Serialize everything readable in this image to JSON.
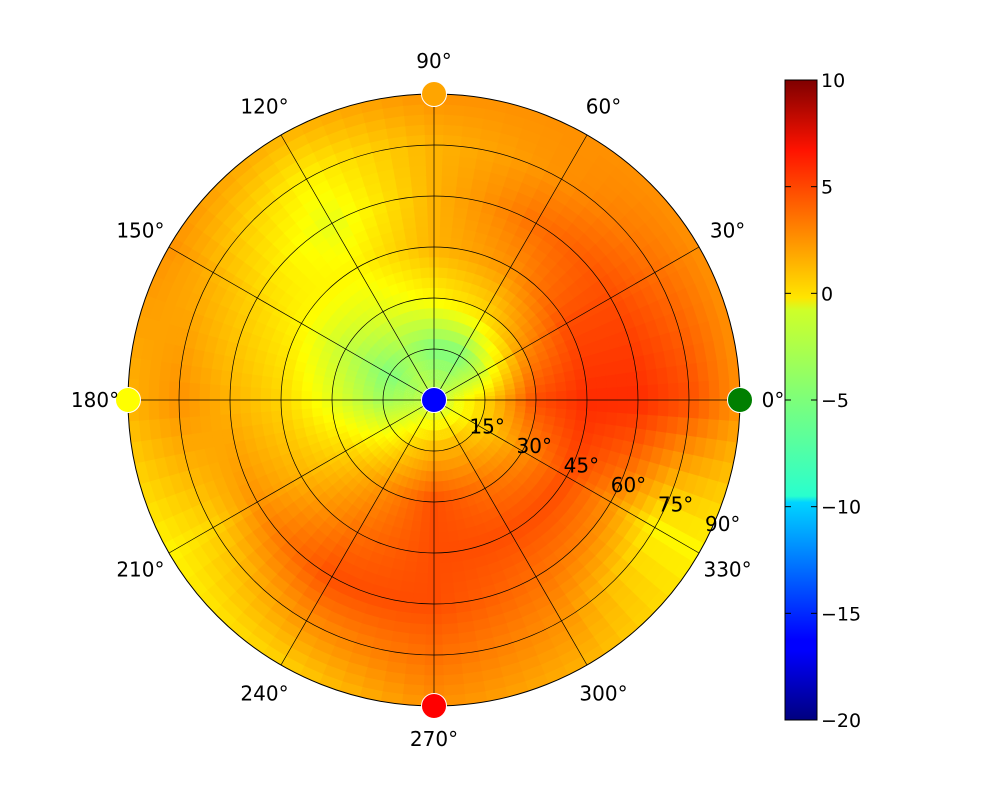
{
  "chart_data": {
    "type": "heatmap",
    "projection": "polar",
    "title": "",
    "angular_tick_labels": [
      "0°",
      "30°",
      "60°",
      "90°",
      "120°",
      "150°",
      "180°",
      "210°",
      "240°",
      "270°",
      "300°",
      "330°"
    ],
    "angular_ticks_deg": [
      0,
      30,
      60,
      90,
      120,
      150,
      180,
      210,
      240,
      270,
      300,
      330
    ],
    "radial_tick_labels": [
      "15°",
      "30°",
      "45°",
      "60°",
      "75°",
      "90°"
    ],
    "radial_ticks": [
      15,
      30,
      45,
      60,
      75,
      90
    ],
    "rlim": [
      0,
      90
    ],
    "grid": true,
    "colormap": "jet",
    "colorbar": {
      "vmin": -20,
      "vmax": 10,
      "tick_values": [
        10,
        5,
        0,
        -5,
        -10,
        -15,
        -20
      ],
      "tick_labels": [
        "10",
        "5",
        "0",
        "−5",
        "−10",
        "−15",
        "−20"
      ],
      "placement": "right"
    },
    "field_samples_note": "approximate field values (same units as colorbar) by zenith angle (rows) and azimuth (columns)",
    "field": {
      "zenith": [
        0,
        15,
        30,
        45,
        60,
        75,
        90
      ],
      "azimuth": [
        0,
        30,
        60,
        90,
        120,
        150,
        180,
        210,
        240,
        270,
        300,
        330
      ],
      "values": [
        [
          -3,
          -3,
          -3,
          -3,
          -3,
          -3,
          -3,
          -3,
          -3,
          -3,
          -3,
          -3
        ],
        [
          0,
          -3,
          -5,
          -5,
          -4,
          -5,
          -4,
          -2,
          0,
          1,
          1,
          0
        ],
        [
          4,
          2,
          0,
          -1,
          -2,
          -3,
          -2,
          0,
          2,
          4,
          3,
          2
        ],
        [
          5,
          4,
          2,
          1,
          -1,
          -1,
          0,
          1,
          3,
          4,
          4,
          4
        ],
        [
          5,
          4,
          3,
          1,
          -2,
          0,
          1,
          2,
          4,
          4,
          3,
          2
        ],
        [
          4,
          3,
          2,
          1,
          -1,
          1,
          2,
          0,
          2,
          3,
          2,
          -1
        ],
        [
          2,
          2,
          2,
          2,
          1,
          2,
          1,
          -1,
          0,
          2,
          1,
          -1
        ]
      ]
    },
    "markers": [
      {
        "azimuth": 0,
        "zenith": 90,
        "color": "#007f00"
      },
      {
        "azimuth": 90,
        "zenith": 90,
        "color": "#ffa500"
      },
      {
        "azimuth": 180,
        "zenith": 90,
        "color": "#ffff00"
      },
      {
        "azimuth": 270,
        "zenith": 90,
        "color": "#ff0000"
      },
      {
        "azimuth": 0,
        "zenith": 0,
        "color": "#0000ff"
      }
    ]
  }
}
